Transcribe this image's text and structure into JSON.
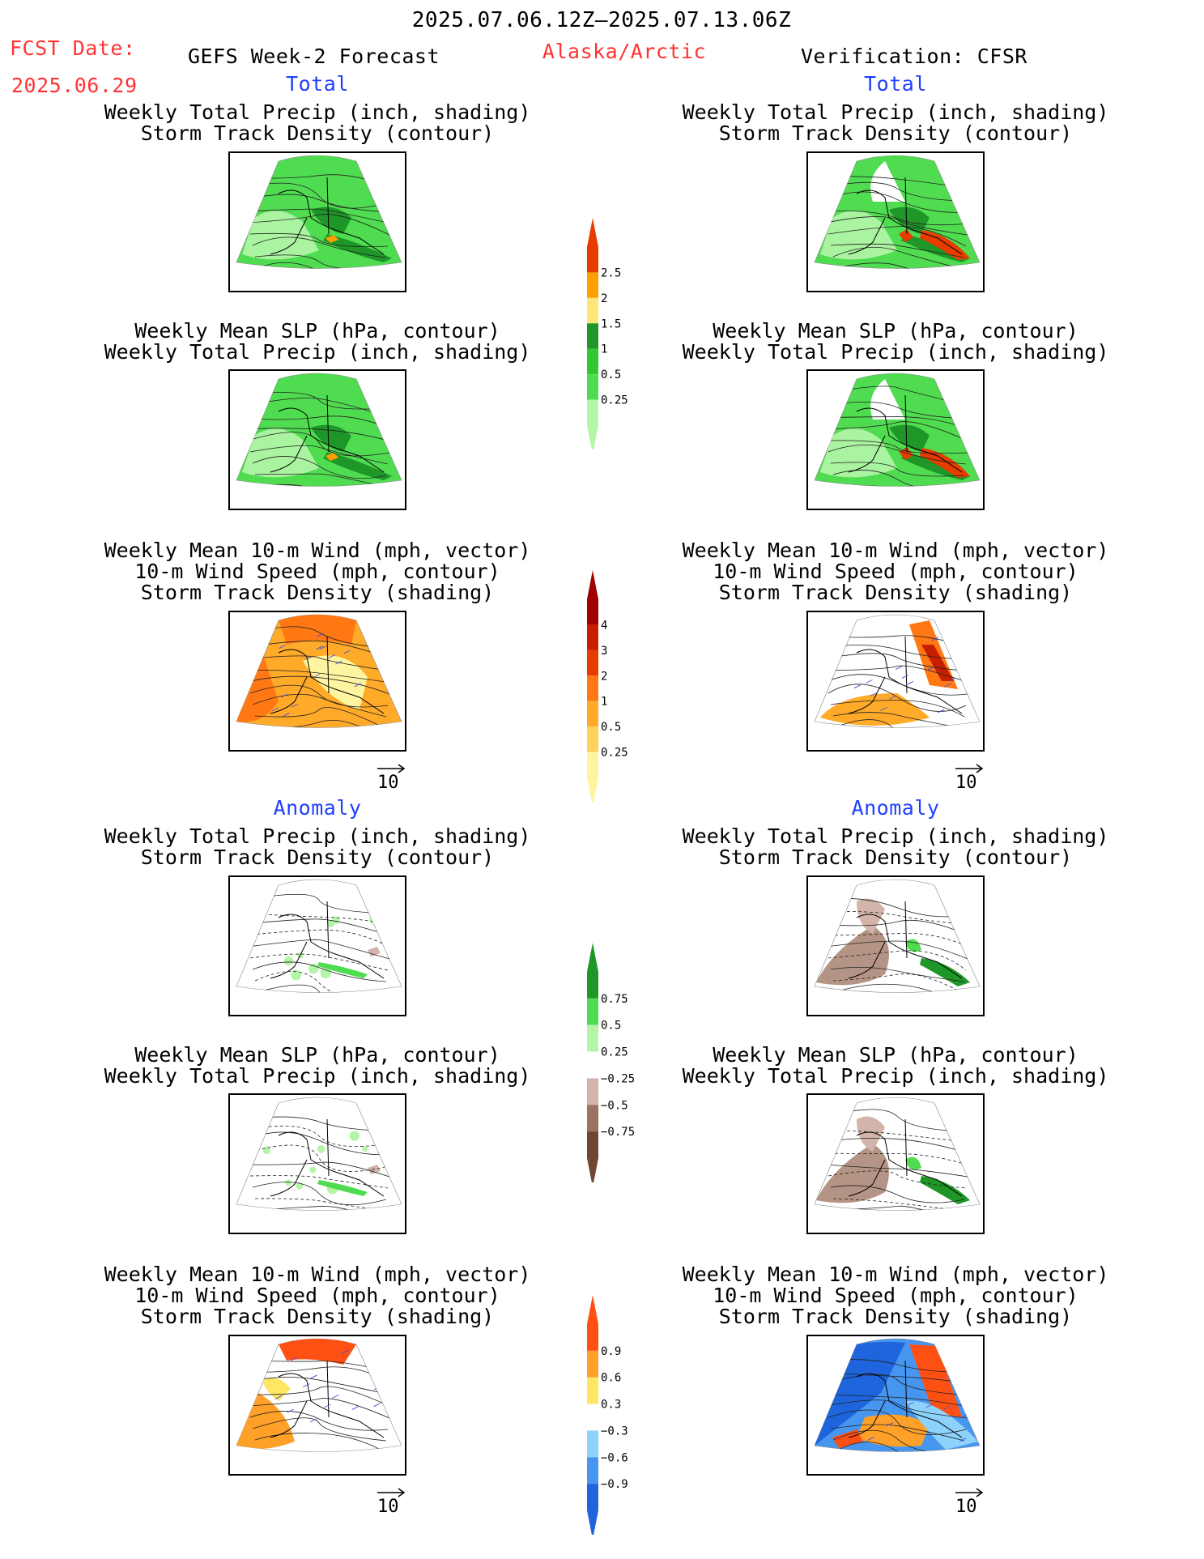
{
  "header": {
    "period": "2025.07.06.12Z–2025.07.13.06Z",
    "fcst_label": "FCST Date:",
    "fcst_date": "2025.06.29",
    "product": "GEFS Week-2 Forecast",
    "region": "Alaska/Arctic",
    "verification": "Verification: CFSR"
  },
  "sections": {
    "total": "Total",
    "anomaly": "Anomaly"
  },
  "panel_titles": {
    "precip_storm": [
      "Weekly Total Precip (inch, shading)",
      "Storm Track Density (contour)"
    ],
    "slp_precip": [
      "Weekly Mean SLP (hPa, contour)",
      "Weekly Total Precip (inch, shading)"
    ],
    "wind_storm": [
      "Weekly Mean 10-m Wind (mph, vector)",
      "10-m Wind Speed (mph, contour)",
      "Storm Track Density (shading)"
    ]
  },
  "ref_vector_label": "10",
  "chart_data": [
    {
      "type": "heatmap",
      "name": "precip colorbar (total)",
      "levels": [
        0.25,
        0.5,
        1,
        1.5,
        2,
        2.5
      ],
      "labels": [
        "0.25",
        "0.5",
        "1",
        "1.5",
        "2",
        "2.5"
      ],
      "colors": [
        "#b4f5a8",
        "#50dc50",
        "#32c832",
        "#1e9628",
        "#ffe678",
        "#ffa000",
        "#e63c00"
      ]
    },
    {
      "type": "heatmap",
      "name": "storm track colorbar (total)",
      "levels": [
        0.25,
        0.5,
        1,
        2,
        3,
        4
      ],
      "labels": [
        "0.25",
        "0.5",
        "1",
        "2",
        "3",
        "4"
      ],
      "colors": [
        "#fff5a0",
        "#ffd25a",
        "#ffaa28",
        "#ff7814",
        "#e63c00",
        "#c81e00",
        "#a00000"
      ]
    },
    {
      "type": "heatmap",
      "name": "precip anomaly colorbar",
      "levels": [
        -0.75,
        -0.5,
        -0.25,
        0.25,
        0.5,
        0.75
      ],
      "labels": [
        "−0.75",
        "−0.5",
        "−0.25",
        "0.25",
        "0.5",
        "0.75"
      ],
      "colors": [
        "#6e4632",
        "#9b7364",
        "#d2b4aa",
        "#ffffff",
        "#b4f5a8",
        "#50dc50",
        "#1e9628"
      ]
    },
    {
      "type": "heatmap",
      "name": "storm track anomaly colorbar",
      "levels": [
        -0.9,
        -0.6,
        -0.3,
        0.3,
        0.6,
        0.9
      ],
      "labels": [
        "−0.9",
        "−0.6",
        "−0.3",
        "0.3",
        "0.6",
        "0.9"
      ],
      "colors": [
        "#1e64dc",
        "#4696f0",
        "#8cd2fa",
        "#ffffff",
        "#ffe664",
        "#ffa028",
        "#ff5014"
      ]
    }
  ]
}
